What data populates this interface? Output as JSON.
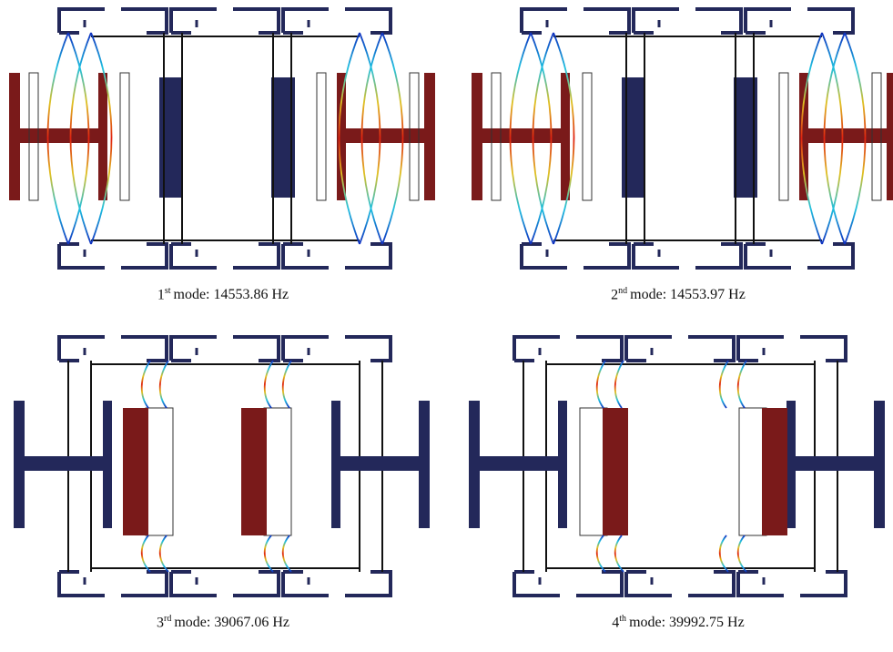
{
  "panels": [
    {
      "ordinal": "1",
      "suffix": "st",
      "caption": "mode: 14553.86 Hz"
    },
    {
      "ordinal": "2",
      "suffix": "nd",
      "caption": "mode: 14553.97 Hz"
    },
    {
      "ordinal": "3",
      "suffix": "rd",
      "caption": "mode: 39067.06 Hz"
    },
    {
      "ordinal": "4",
      "suffix": "th",
      "caption": "mode: 39992.75 Hz"
    }
  ]
}
